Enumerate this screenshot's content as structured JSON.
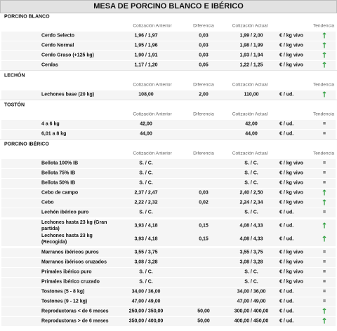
{
  "title": "MESA DE PORCINO BLANCO E IBÉRICO",
  "sections": [
    {
      "title": "PORCINO BLANCO",
      "columns": [
        "Cotización Anterior",
        "Diferencia",
        "Cotización Actual",
        "Tendencia"
      ],
      "rows": [
        {
          "producto": "Cerdo Selecto",
          "anterior": "1,96 / 1,97",
          "diferencia": "0,03",
          "actual": "1,99 / 2,00",
          "unidad": "€ / kg vivo",
          "tendencia": "↑"
        },
        {
          "producto": "Cerdo Normal",
          "anterior": "1,95 / 1,96",
          "diferencia": "0,03",
          "actual": "1,98 / 1,99",
          "unidad": "€ / kg vivo",
          "tendencia": "↑"
        },
        {
          "producto": "Cerdo Graso (+125 kg)",
          "anterior": "1,90 / 1,91",
          "diferencia": "0,03",
          "actual": "1,93 / 1,94",
          "unidad": "€ / kg vivo",
          "tendencia": "↑"
        },
        {
          "producto": "Cerdas",
          "anterior": "1,17 / 1,20",
          "diferencia": "0,05",
          "actual": "1,22 / 1,25",
          "unidad": "€ / kg vivo",
          "tendencia": "↑"
        }
      ]
    },
    {
      "title": "LECHÓN",
      "columns": [
        "Cotización Anterior",
        "Diferencia",
        "Cotización Actual",
        "Tendencia"
      ],
      "rows": [
        {
          "producto": "Lechones base (20 kg)",
          "anterior": "108,00",
          "diferencia": "2,00",
          "actual": "110,00",
          "unidad": "€ / ud.",
          "tendencia": "↑"
        }
      ]
    },
    {
      "title": "TOSTÓN",
      "columns": [
        "Cotización Anterior",
        "Diferencia",
        "Cotización Actual",
        "Tendencia"
      ],
      "rows": [
        {
          "producto": "4 a 6 kg",
          "anterior": "42,00",
          "actual": "42,00",
          "unidad": "€ / ud.",
          "tendencia": "="
        },
        {
          "producto": "6,01 a 8 kg",
          "anterior": "44,00",
          "actual": "44,00",
          "unidad": "€ / ud.",
          "tendencia": "="
        }
      ]
    },
    {
      "title": "PORCINO IBÉRICO",
      "columns": [
        "Cotización Anterior",
        "Diferencia",
        "Cotización Actual",
        "Tendencia"
      ],
      "rows": [
        {
          "producto": "Bellota 100% IB",
          "anterior": "S. / C.",
          "actual": "S. / C.",
          "unidad": "€ / kg vivo",
          "tendencia": "="
        },
        {
          "producto": "Bellota 75% IB",
          "anterior": "S. / C.",
          "actual": "S. / C.",
          "unidad": "€ / kg vivo",
          "tendencia": "="
        },
        {
          "producto": "Bellota 50% IB",
          "anterior": "S. / C.",
          "actual": "S. / C.",
          "unidad": "€ / kg vivo",
          "tendencia": "="
        },
        {
          "producto": "Cebo de campo",
          "anterior": "2,37 / 2,47",
          "diferencia": "0,03",
          "actual": "2,40 / 2,50",
          "unidad": "€ / kg vivo",
          "tendencia": "↑"
        },
        {
          "producto": "Cebo",
          "anterior": "2,22 / 2,32",
          "diferencia": "0,02",
          "actual": "2,24 / 2,34",
          "unidad": "€ / kg vivo",
          "tendencia": "↑"
        },
        {
          "producto": "Lechón ibérico puro",
          "anterior": "S. / C.",
          "actual": "S. / C.",
          "unidad": "€ / ud.",
          "tendencia": "="
        },
        {
          "producto": "Lechones hasta 23 kg (Gran partida)",
          "anterior": "3,93 / 4,18",
          "diferencia": "0,15",
          "actual": "4,08 / 4,33",
          "unidad": "€ / ud.",
          "tendencia": "↑"
        },
        {
          "producto": "Lechones hasta 23 kg (Recogida)",
          "anterior": "3,93 / 4,18",
          "diferencia": "0,15",
          "actual": "4,08 / 4,33",
          "unidad": "€ / ud.",
          "tendencia": "↑"
        },
        {
          "producto": "Marranos ibéricos puros",
          "anterior": "3,55 / 3,75",
          "actual": "3,55 / 3,75",
          "unidad": "€ / kg vivo",
          "tendencia": "="
        },
        {
          "producto": "Marranos ibéricos cruzados",
          "anterior": "3,08 / 3,28",
          "actual": "3,08 / 3,28",
          "unidad": "€ / kg vivo",
          "tendencia": "="
        },
        {
          "producto": "Primales ibérico puro",
          "anterior": "S. / C.",
          "actual": "S. / C.",
          "unidad": "€ / kg vivo",
          "tendencia": "="
        },
        {
          "producto": "Primales ibérico cruzado",
          "anterior": "S. / C.",
          "actual": "S. / C.",
          "unidad": "€ / kg vivo",
          "tendencia": "="
        },
        {
          "producto": "Tostones (5 - 8 kg)",
          "anterior": "34,00 / 36,00",
          "actual": "34,00 / 36,00",
          "unidad": "€ / ud.",
          "tendencia": "="
        },
        {
          "producto": "Tostones (9 - 12 kg)",
          "anterior": "47,00 / 49,00",
          "actual": "47,00 / 49,00",
          "unidad": "€ / ud.",
          "tendencia": "="
        },
        {
          "producto": "Reproductoras < de 6 meses",
          "anterior": "250,00 / 350,00",
          "diferencia": "50,00",
          "actual": "300,00 / 400,00",
          "unidad": "€ / ud.",
          "tendencia": "↑"
        },
        {
          "producto": "Reproductoras > de 6 meses",
          "anterior": "350,00 / 400,00",
          "diferencia": "50,00",
          "actual": "400,00 / 450,00",
          "unidad": "€ / ud.",
          "tendencia": "↑"
        }
      ]
    }
  ]
}
